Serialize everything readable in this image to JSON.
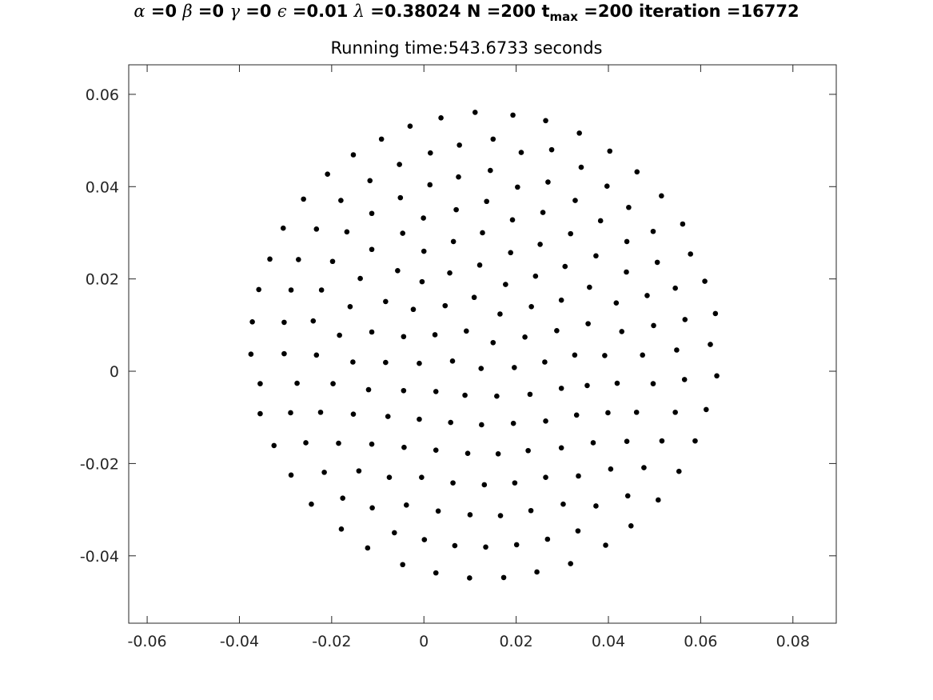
{
  "figure": {
    "title_parts": {
      "alpha_sym": "α",
      "alpha_val": " =0 ",
      "beta_sym": "β",
      "beta_val": " =0 ",
      "gamma_sym": "γ",
      "gamma_val": " =0 ",
      "eps_sym": "ϵ",
      "eps_val": " =0.01 ",
      "lambda_sym": "λ",
      "lambda_val": " =0.38024 N =200 t",
      "tmax_sub": "max",
      "tail": " =200 iteration =16772"
    },
    "subtitle": "Running time:543.6733 seconds"
  },
  "chart_data": {
    "type": "scatter",
    "title": "α =0 β =0 γ =0 ϵ =0.01 λ =0.38024 N =200 t_max =200 iteration =16772",
    "subtitle": "Running time:543.6733 seconds",
    "xlabel": "",
    "ylabel": "",
    "xlim": [
      -0.064,
      0.0894
    ],
    "ylim": [
      -0.0546,
      0.0664
    ],
    "xticks": [
      -0.06,
      -0.04,
      -0.02,
      0,
      0.02,
      0.04,
      0.06,
      0.08
    ],
    "xtick_labels": [
      "-0.06",
      "-0.04",
      "-0.02",
      "0",
      "0.02",
      "0.04",
      "0.06",
      "0.08"
    ],
    "yticks": [
      -0.04,
      -0.02,
      0,
      0.02,
      0.04,
      0.06
    ],
    "ytick_labels": [
      "-0.04",
      "-0.02",
      "0",
      "0.02",
      "0.04",
      "0.06"
    ],
    "grid": false,
    "box": true,
    "marker_color": "#000000",
    "points": [
      [
        0.0111,
        0.0561
      ],
      [
        0.0193,
        0.0555
      ],
      [
        0.0037,
        0.0549
      ],
      [
        0.0264,
        0.0543
      ],
      [
        -0.003,
        0.0531
      ],
      [
        0.0337,
        0.0516
      ],
      [
        0.015,
        0.0503
      ],
      [
        -0.0092,
        0.0503
      ],
      [
        0.0077,
        0.049
      ],
      [
        0.0277,
        0.048
      ],
      [
        0.0403,
        0.0477
      ],
      [
        0.0211,
        0.0474
      ],
      [
        0.0014,
        0.0473
      ],
      [
        -0.0153,
        0.0469
      ],
      [
        -0.0053,
        0.0448
      ],
      [
        0.0341,
        0.0442
      ],
      [
        0.0144,
        0.0435
      ],
      [
        0.0462,
        0.0432
      ],
      [
        -0.0209,
        0.0427
      ],
      [
        0.0075,
        0.0421
      ],
      [
        -0.0117,
        0.0413
      ],
      [
        0.0269,
        0.041
      ],
      [
        0.0013,
        0.0404
      ],
      [
        0.0397,
        0.0401
      ],
      [
        0.0203,
        0.0399
      ],
      [
        0.0515,
        0.038
      ],
      [
        -0.0051,
        0.0376
      ],
      [
        -0.0261,
        0.0373
      ],
      [
        0.0328,
        0.037
      ],
      [
        0.0136,
        0.0368
      ],
      [
        -0.018,
        0.037
      ],
      [
        0.0444,
        0.0355
      ],
      [
        0.007,
        0.035
      ],
      [
        0.0258,
        0.0344
      ],
      [
        -0.0113,
        0.0342
      ],
      [
        -0.0001,
        0.0332
      ],
      [
        0.0192,
        0.0328
      ],
      [
        0.0383,
        0.0326
      ],
      [
        0.0561,
        0.0319
      ],
      [
        -0.0305,
        0.031
      ],
      [
        -0.0233,
        0.0308
      ],
      [
        0.0497,
        0.0303
      ],
      [
        -0.0046,
        0.0299
      ],
      [
        0.0318,
        0.0298
      ],
      [
        -0.0167,
        0.0302
      ],
      [
        0.0127,
        0.03
      ],
      [
        0.0064,
        0.0281
      ],
      [
        0.044,
        0.0281
      ],
      [
        0.0252,
        0.0275
      ],
      [
        -0.0113,
        0.0264
      ],
      [
        0.0578,
        0.0254
      ],
      [
        -0.0,
        0.026
      ],
      [
        0.0188,
        0.0257
      ],
      [
        0.0373,
        0.025
      ],
      [
        -0.0334,
        0.0243
      ],
      [
        -0.0272,
        0.0242
      ],
      [
        -0.0198,
        0.0238
      ],
      [
        0.0506,
        0.0236
      ],
      [
        -0.0057,
        0.0218
      ],
      [
        0.0306,
        0.0227
      ],
      [
        0.0121,
        0.023
      ],
      [
        0.0439,
        0.0215
      ],
      [
        0.0056,
        0.0213
      ],
      [
        0.0242,
        0.0206
      ],
      [
        -0.0138,
        0.0201
      ],
      [
        0.0609,
        0.0195
      ],
      [
        -0.0004,
        0.0194
      ],
      [
        0.0177,
        0.0188
      ],
      [
        -0.0358,
        0.0177
      ],
      [
        0.0359,
        0.0182
      ],
      [
        -0.0288,
        0.0176
      ],
      [
        -0.0222,
        0.0176
      ],
      [
        0.0545,
        0.018
      ],
      [
        0.0484,
        0.0164
      ],
      [
        0.0109,
        0.016
      ],
      [
        0.0298,
        0.0154
      ],
      [
        -0.0083,
        0.0151
      ],
      [
        0.0417,
        0.0148
      ],
      [
        -0.016,
        0.014
      ],
      [
        0.0046,
        0.0142
      ],
      [
        0.0233,
        0.014
      ],
      [
        -0.0023,
        0.0134
      ],
      [
        0.0632,
        0.0125
      ],
      [
        0.0165,
        0.0124
      ],
      [
        -0.0372,
        0.0107
      ],
      [
        -0.0303,
        0.0106
      ],
      [
        -0.024,
        0.0109
      ],
      [
        0.0566,
        0.0112
      ],
      [
        0.0356,
        0.0103
      ],
      [
        0.0498,
        0.0099
      ],
      [
        0.0092,
        0.0087
      ],
      [
        0.0288,
        0.0088
      ],
      [
        -0.0113,
        0.0085
      ],
      [
        0.0429,
        0.0086
      ],
      [
        -0.0183,
        0.0078
      ],
      [
        0.0024,
        0.0079
      ],
      [
        0.0219,
        0.0074
      ],
      [
        -0.0044,
        0.0075
      ],
      [
        0.015,
        0.0062
      ],
      [
        0.0621,
        0.0058
      ],
      [
        -0.0375,
        0.0037
      ],
      [
        -0.0303,
        0.0038
      ],
      [
        -0.0233,
        0.0035
      ],
      [
        0.0548,
        0.0046
      ],
      [
        0.0327,
        0.0035
      ],
      [
        0.0474,
        0.0035
      ],
      [
        0.0392,
        0.0034
      ],
      [
        -0.0154,
        0.002
      ],
      [
        0.0062,
        0.0022
      ],
      [
        0.0262,
        0.002
      ],
      [
        -0.0083,
        0.0019
      ],
      [
        -0.001,
        0.0017
      ],
      [
        0.0196,
        0.0008
      ],
      [
        0.0124,
        0.0006
      ],
      [
        0.0635,
        -0.001
      ],
      [
        0.0565,
        -0.0018
      ],
      [
        -0.0355,
        -0.0027
      ],
      [
        -0.0275,
        -0.0026
      ],
      [
        0.0419,
        -0.0026
      ],
      [
        0.0497,
        -0.0027
      ],
      [
        -0.0197,
        -0.0027
      ],
      [
        0.0354,
        -0.0031
      ],
      [
        0.0298,
        -0.0037
      ],
      [
        -0.012,
        -0.004
      ],
      [
        -0.0044,
        -0.0042
      ],
      [
        0.0026,
        -0.0044
      ],
      [
        0.023,
        -0.005
      ],
      [
        0.0089,
        -0.0052
      ],
      [
        0.0158,
        -0.0054
      ],
      [
        0.0612,
        -0.0083
      ],
      [
        -0.0355,
        -0.0092
      ],
      [
        -0.0289,
        -0.009
      ],
      [
        0.0461,
        -0.0089
      ],
      [
        -0.0224,
        -0.0089
      ],
      [
        0.0399,
        -0.009
      ],
      [
        0.0545,
        -0.0089
      ],
      [
        -0.0153,
        -0.0093
      ],
      [
        0.0331,
        -0.0095
      ],
      [
        -0.0078,
        -0.0098
      ],
      [
        -0.001,
        -0.0104
      ],
      [
        0.0264,
        -0.0108
      ],
      [
        0.0058,
        -0.0111
      ],
      [
        0.0194,
        -0.0113
      ],
      [
        0.0125,
        -0.0116
      ],
      [
        0.0588,
        -0.0151
      ],
      [
        -0.0325,
        -0.0161
      ],
      [
        0.0516,
        -0.0151
      ],
      [
        0.044,
        -0.0152
      ],
      [
        -0.0256,
        -0.0155
      ],
      [
        -0.0185,
        -0.0156
      ],
      [
        0.0367,
        -0.0155
      ],
      [
        -0.0113,
        -0.0158
      ],
      [
        0.0298,
        -0.0166
      ],
      [
        -0.0043,
        -0.0165
      ],
      [
        0.0226,
        -0.0172
      ],
      [
        0.0026,
        -0.0171
      ],
      [
        0.0095,
        -0.0178
      ],
      [
        0.0161,
        -0.0179
      ],
      [
        0.0553,
        -0.0217
      ],
      [
        0.0405,
        -0.0212
      ],
      [
        0.0477,
        -0.0209
      ],
      [
        -0.0288,
        -0.0225
      ],
      [
        -0.0216,
        -0.0219
      ],
      [
        0.0335,
        -0.0227
      ],
      [
        -0.0141,
        -0.0216
      ],
      [
        0.0264,
        -0.023
      ],
      [
        -0.0075,
        -0.023
      ],
      [
        -0.0005,
        -0.023
      ],
      [
        0.0197,
        -0.0242
      ],
      [
        0.0063,
        -0.0242
      ],
      [
        0.0131,
        -0.0246
      ],
      [
        0.0508,
        -0.0279
      ],
      [
        -0.0244,
        -0.0288
      ],
      [
        0.0442,
        -0.027
      ],
      [
        0.0373,
        -0.0292
      ],
      [
        -0.0176,
        -0.0275
      ],
      [
        0.0302,
        -0.0288
      ],
      [
        -0.0112,
        -0.0296
      ],
      [
        -0.0038,
        -0.029
      ],
      [
        0.0232,
        -0.0302
      ],
      [
        0.0031,
        -0.0303
      ],
      [
        0.01,
        -0.0311
      ],
      [
        0.0166,
        -0.0313
      ],
      [
        0.0449,
        -0.0335
      ],
      [
        -0.0179,
        -0.0342
      ],
      [
        0.0334,
        -0.0346
      ],
      [
        -0.0064,
        -0.035
      ],
      [
        0.0268,
        -0.0364
      ],
      [
        0.0001,
        -0.0365
      ],
      [
        0.0067,
        -0.0378
      ],
      [
        0.0201,
        -0.0376
      ],
      [
        0.0134,
        -0.0381
      ],
      [
        -0.0122,
        -0.0383
      ],
      [
        0.0394,
        -0.0377
      ],
      [
        0.0318,
        -0.0417
      ],
      [
        -0.0046,
        -0.0419
      ],
      [
        0.0245,
        -0.0435
      ],
      [
        0.0026,
        -0.0437
      ],
      [
        0.0173,
        -0.0447
      ],
      [
        0.0099,
        -0.0448
      ]
    ]
  }
}
